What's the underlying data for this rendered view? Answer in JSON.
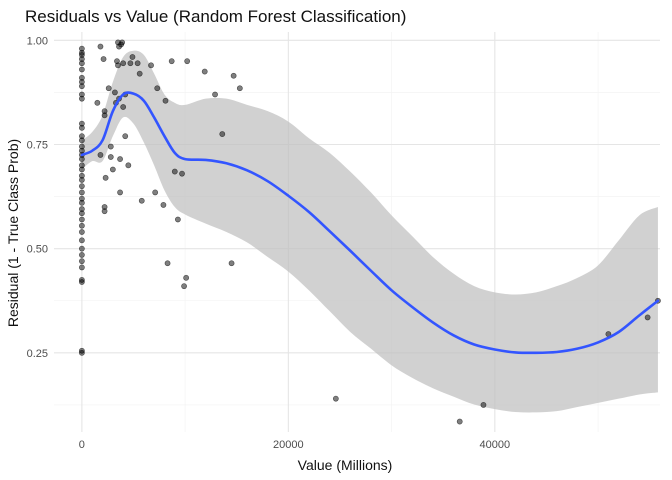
{
  "chart_data": {
    "type": "scatter",
    "title": "Residuals vs Value (Random Forest Classification)",
    "xlabel": "Value (Millions)",
    "ylabel": "Residual (1 - True Class Prob)",
    "xlim": [
      -2700,
      56000
    ],
    "ylim": [
      0.06,
      1.02
    ],
    "x_ticks": [
      0,
      20000,
      40000
    ],
    "x_tick_labels": [
      "0",
      "20000",
      "40000"
    ],
    "x_minor_ticks": [
      10000,
      30000,
      50000
    ],
    "y_ticks": [
      0.25,
      0.5,
      0.75,
      1.0
    ],
    "y_tick_labels": [
      "0.25",
      "0.50",
      "0.75",
      "1.00"
    ],
    "y_minor_ticks": [
      0.125,
      0.375,
      0.625,
      0.875
    ],
    "grid": true,
    "legend": "none",
    "colors": {
      "points": "#000000",
      "smooth_line": "#3355ff",
      "ribbon": "#bfbfbf",
      "grid_major": "#e5e5e5",
      "grid_minor": "#f2f2f2"
    },
    "series": [
      {
        "type": "scatter",
        "points": [
          [
            0,
            0.98
          ],
          [
            0,
            0.97
          ],
          [
            0,
            0.965
          ],
          [
            0,
            0.955
          ],
          [
            0,
            0.945
          ],
          [
            0,
            0.93
          ],
          [
            0,
            0.91
          ],
          [
            0,
            0.9
          ],
          [
            0,
            0.89
          ],
          [
            0,
            0.87
          ],
          [
            0,
            0.86
          ],
          [
            0,
            0.8
          ],
          [
            0,
            0.79
          ],
          [
            0,
            0.77
          ],
          [
            0,
            0.76
          ],
          [
            0,
            0.745
          ],
          [
            0,
            0.735
          ],
          [
            0,
            0.725
          ],
          [
            0,
            0.715
          ],
          [
            0,
            0.7
          ],
          [
            0,
            0.69
          ],
          [
            0,
            0.675
          ],
          [
            0,
            0.665
          ],
          [
            0,
            0.65
          ],
          [
            0,
            0.635
          ],
          [
            0,
            0.62
          ],
          [
            0,
            0.61
          ],
          [
            0,
            0.595
          ],
          [
            0,
            0.585
          ],
          [
            0,
            0.57
          ],
          [
            0,
            0.555
          ],
          [
            0,
            0.54
          ],
          [
            0,
            0.52
          ],
          [
            0,
            0.5
          ],
          [
            0,
            0.485
          ],
          [
            0,
            0.47
          ],
          [
            0,
            0.455
          ],
          [
            0,
            0.425
          ],
          [
            0,
            0.42
          ],
          [
            0,
            0.255
          ],
          [
            0,
            0.25
          ],
          [
            1500,
            0.85
          ],
          [
            1800,
            0.985
          ],
          [
            1800,
            0.725
          ],
          [
            2100,
            0.955
          ],
          [
            2200,
            0.82
          ],
          [
            2200,
            0.83
          ],
          [
            2200,
            0.6
          ],
          [
            2200,
            0.59
          ],
          [
            2300,
            0.67
          ],
          [
            2600,
            0.885
          ],
          [
            2800,
            0.745
          ],
          [
            2800,
            0.72
          ],
          [
            3000,
            0.69
          ],
          [
            3200,
            0.875
          ],
          [
            3300,
            0.85
          ],
          [
            3400,
            0.95
          ],
          [
            3500,
            0.94
          ],
          [
            3500,
            0.995
          ],
          [
            3600,
            0.985
          ],
          [
            3600,
            0.86
          ],
          [
            3700,
            0.715
          ],
          [
            3700,
            0.635
          ],
          [
            3800,
            0.99
          ],
          [
            3900,
            0.995
          ],
          [
            4000,
            0.945
          ],
          [
            4000,
            0.84
          ],
          [
            4200,
            0.87
          ],
          [
            4200,
            0.77
          ],
          [
            4500,
            0.7
          ],
          [
            4700,
            0.945
          ],
          [
            4900,
            0.96
          ],
          [
            5400,
            0.945
          ],
          [
            5600,
            0.92
          ],
          [
            5800,
            0.615
          ],
          [
            6700,
            0.94
          ],
          [
            7100,
            0.635
          ],
          [
            7300,
            0.885
          ],
          [
            7900,
            0.605
          ],
          [
            8100,
            0.855
          ],
          [
            8300,
            0.465
          ],
          [
            8700,
            0.95
          ],
          [
            9000,
            0.685
          ],
          [
            9300,
            0.57
          ],
          [
            9700,
            0.68
          ],
          [
            9900,
            0.41
          ],
          [
            10100,
            0.43
          ],
          [
            10200,
            0.95
          ],
          [
            11900,
            0.925
          ],
          [
            12900,
            0.87
          ],
          [
            13600,
            0.775
          ],
          [
            14500,
            0.465
          ],
          [
            14700,
            0.915
          ],
          [
            15300,
            0.885
          ],
          [
            24600,
            0.14
          ],
          [
            36600,
            0.085
          ],
          [
            38900,
            0.125
          ],
          [
            51000,
            0.295
          ],
          [
            54800,
            0.335
          ],
          [
            55800,
            0.375
          ]
        ]
      },
      {
        "type": "smooth",
        "x": [
          0,
          1000,
          2000,
          3000,
          4000,
          5000,
          6000,
          7000,
          8000,
          9000,
          10000,
          12000,
          14000,
          16000,
          18000,
          20000,
          22000,
          24000,
          26000,
          28000,
          30000,
          32000,
          34000,
          36000,
          38000,
          40000,
          42000,
          44000,
          46000,
          48000,
          50000,
          52000,
          54000,
          55800
        ],
        "y": [
          0.725,
          0.735,
          0.76,
          0.83,
          0.87,
          0.872,
          0.855,
          0.815,
          0.77,
          0.73,
          0.715,
          0.713,
          0.705,
          0.688,
          0.662,
          0.627,
          0.588,
          0.542,
          0.495,
          0.447,
          0.4,
          0.36,
          0.323,
          0.292,
          0.27,
          0.258,
          0.251,
          0.25,
          0.252,
          0.26,
          0.275,
          0.3,
          0.34,
          0.375
        ],
        "lower": [
          0.69,
          0.71,
          0.71,
          0.77,
          0.815,
          0.8,
          0.755,
          0.7,
          0.64,
          0.6,
          0.582,
          0.56,
          0.54,
          0.515,
          0.48,
          0.445,
          0.4,
          0.35,
          0.3,
          0.26,
          0.22,
          0.19,
          0.165,
          0.145,
          0.126,
          0.115,
          0.108,
          0.107,
          0.11,
          0.12,
          0.13,
          0.14,
          0.15,
          0.155
        ],
        "upper": [
          0.76,
          0.78,
          0.82,
          0.9,
          0.96,
          0.975,
          0.965,
          0.92,
          0.87,
          0.85,
          0.845,
          0.86,
          0.86,
          0.845,
          0.83,
          0.805,
          0.765,
          0.73,
          0.685,
          0.635,
          0.58,
          0.53,
          0.48,
          0.44,
          0.41,
          0.395,
          0.39,
          0.395,
          0.41,
          0.43,
          0.46,
          0.52,
          0.58,
          0.6
        ]
      }
    ]
  }
}
